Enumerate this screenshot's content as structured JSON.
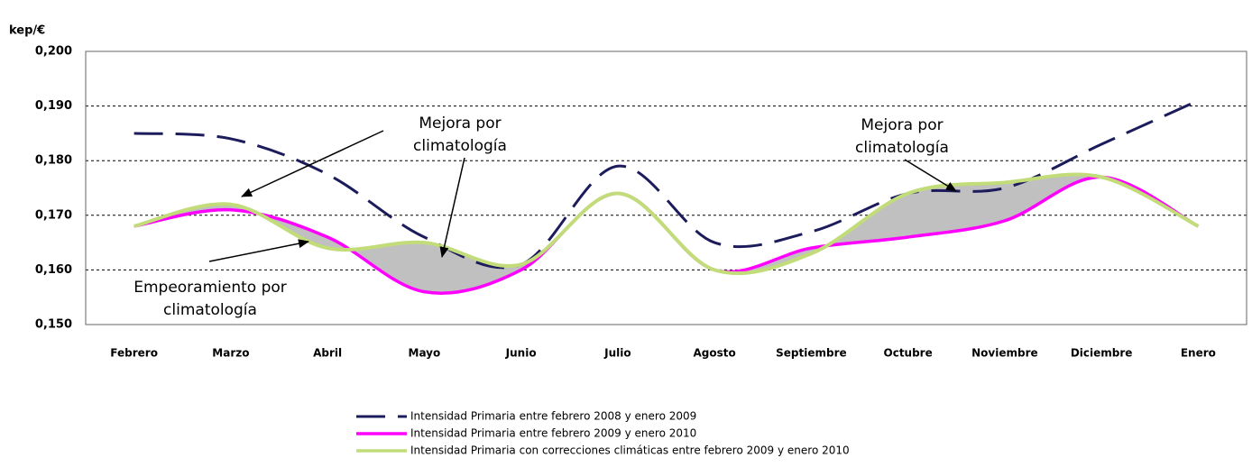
{
  "chart_data": {
    "type": "line",
    "y_label": "kep/€",
    "categories": [
      "Febrero",
      "Marzo",
      "Abril",
      "Mayo",
      "Junio",
      "Julio",
      "Agosto",
      "Septiembre",
      "Octubre",
      "Noviembre",
      "Diciembre",
      "Enero"
    ],
    "series": [
      {
        "name": "Intensidad Primaria entre febrero 2008 y enero 2009",
        "color": "#1c1c5c",
        "dash": true,
        "values": [
          0.185,
          0.184,
          0.1775,
          0.166,
          0.161,
          0.179,
          0.165,
          0.167,
          0.174,
          0.175,
          0.183,
          0.191
        ]
      },
      {
        "name": "Intensidad Primaria entre febrero 2009 y enero 2010",
        "color": "#ff00ff",
        "dash": false,
        "values": [
          0.168,
          0.171,
          0.166,
          0.156,
          0.16,
          0.174,
          0.16,
          0.164,
          0.166,
          0.169,
          0.177,
          0.168
        ]
      },
      {
        "name": "Intensidad Primaria con correcciones climáticas entre febrero 2009 y enero 2010",
        "color": "#c2dc7a",
        "dash": false,
        "values": [
          0.168,
          0.172,
          0.164,
          0.165,
          0.161,
          0.174,
          0.16,
          0.163,
          0.174,
          0.176,
          0.177,
          0.168
        ]
      }
    ],
    "ylim": [
      0.15,
      0.2
    ],
    "yticks": [
      {
        "value": 0.15,
        "label": "0,150"
      },
      {
        "value": 0.16,
        "label": "0,160"
      },
      {
        "value": 0.17,
        "label": "0,170"
      },
      {
        "value": 0.18,
        "label": "0,180"
      },
      {
        "value": 0.19,
        "label": "0,190"
      },
      {
        "value": 0.2,
        "label": "0,200"
      }
    ],
    "grid": true,
    "annotations": [
      {
        "lines": [
          "Mejora por",
          "climatología"
        ]
      },
      {
        "lines": [
          "Empeoramiento por",
          "climatología"
        ]
      },
      {
        "lines": [
          "Mejora por",
          "climatología"
        ]
      }
    ]
  }
}
